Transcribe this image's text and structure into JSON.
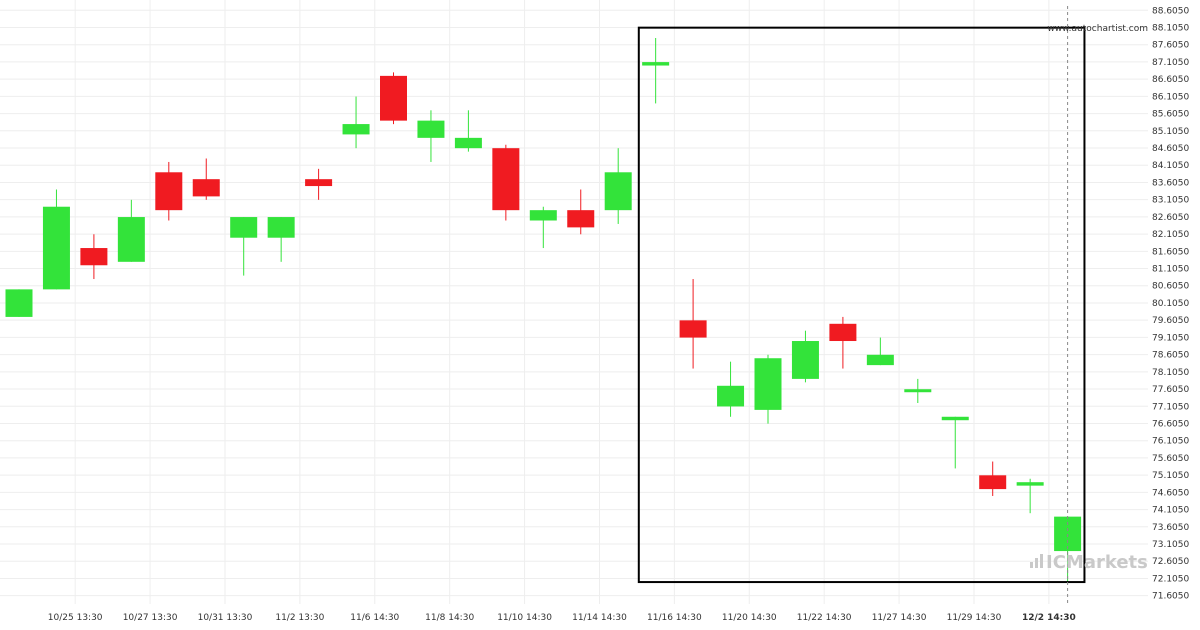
{
  "chart_data": {
    "type": "candlestick",
    "watermark": "www.autochartist.com",
    "brand": "ICMarkets",
    "y_ticks": [
      "88.6050",
      "88.1050",
      "87.6050",
      "87.1050",
      "86.6050",
      "86.1050",
      "85.6050",
      "85.1050",
      "84.6050",
      "84.1050",
      "83.6050",
      "83.1050",
      "82.6050",
      "82.1050",
      "81.6050",
      "81.1050",
      "80.6050",
      "80.1050",
      "79.6050",
      "79.1050",
      "78.6050",
      "78.1050",
      "77.6050",
      "77.1050",
      "76.6050",
      "76.1050",
      "75.6050",
      "75.1050",
      "74.6050",
      "74.1050",
      "73.6050",
      "73.1050",
      "72.6050",
      "72.1050",
      "71.6050"
    ],
    "ylim": [
      71.45,
      88.7
    ],
    "x_ticks": [
      "10/25 13:30",
      "10/27 13:30",
      "10/31 13:30",
      "11/2 13:30",
      "11/6 14:30",
      "11/8 14:30",
      "11/10 14:30",
      "11/14 14:30",
      "11/16 14:30",
      "11/20 14:30",
      "11/22 14:30",
      "11/27 14:30",
      "11/29 14:30",
      "12/2 14:30"
    ],
    "x_tick_index": [
      1.5,
      3.5,
      5.5,
      7.5,
      9.5,
      11.5,
      13.5,
      15.5,
      17.5,
      19.5,
      21.5,
      23.5,
      25.5,
      27.5
    ],
    "candles": [
      {
        "o": 79.7,
        "h": 80.5,
        "l": 79.7,
        "c": 80.5
      },
      {
        "o": 80.5,
        "h": 83.4,
        "l": 80.5,
        "c": 82.9
      },
      {
        "o": 81.7,
        "h": 82.1,
        "l": 80.8,
        "c": 81.2
      },
      {
        "o": 81.3,
        "h": 83.1,
        "l": 81.3,
        "c": 82.6
      },
      {
        "o": 83.9,
        "h": 84.2,
        "l": 82.5,
        "c": 82.8
      },
      {
        "o": 83.7,
        "h": 84.3,
        "l": 83.1,
        "c": 83.2
      },
      {
        "o": 82.0,
        "h": 82.6,
        "l": 80.9,
        "c": 82.6
      },
      {
        "o": 82.0,
        "h": 82.6,
        "l": 81.3,
        "c": 82.6
      },
      {
        "o": 83.7,
        "h": 84.0,
        "l": 83.1,
        "c": 83.5
      },
      {
        "o": 85.0,
        "h": 86.1,
        "l": 84.6,
        "c": 85.3
      },
      {
        "o": 86.7,
        "h": 86.8,
        "l": 85.3,
        "c": 85.4
      },
      {
        "o": 84.9,
        "h": 85.7,
        "l": 84.2,
        "c": 85.4
      },
      {
        "o": 84.6,
        "h": 85.7,
        "l": 84.5,
        "c": 84.9
      },
      {
        "o": 84.6,
        "h": 84.7,
        "l": 82.5,
        "c": 82.8
      },
      {
        "o": 82.5,
        "h": 82.9,
        "l": 81.7,
        "c": 82.8
      },
      {
        "o": 82.8,
        "h": 83.4,
        "l": 82.1,
        "c": 82.3
      },
      {
        "o": 82.8,
        "h": 84.6,
        "l": 82.4,
        "c": 83.9
      },
      {
        "o": 87.0,
        "h": 87.8,
        "l": 85.9,
        "c": 87.1
      },
      {
        "o": 79.6,
        "h": 80.8,
        "l": 78.2,
        "c": 79.1
      },
      {
        "o": 77.1,
        "h": 78.4,
        "l": 76.8,
        "c": 77.7
      },
      {
        "o": 77.0,
        "h": 78.6,
        "l": 76.6,
        "c": 78.5
      },
      {
        "o": 77.9,
        "h": 79.3,
        "l": 77.8,
        "c": 79.0
      },
      {
        "o": 79.5,
        "h": 79.7,
        "l": 78.2,
        "c": 79.0
      },
      {
        "o": 78.3,
        "h": 79.1,
        "l": 78.3,
        "c": 78.6
      },
      {
        "o": 77.6,
        "h": 77.9,
        "l": 77.2,
        "c": 77.6
      },
      {
        "o": 76.7,
        "h": 76.8,
        "l": 75.3,
        "c": 76.8
      },
      {
        "o": 75.1,
        "h": 75.5,
        "l": 74.5,
        "c": 74.7
      },
      {
        "o": 74.8,
        "h": 75.0,
        "l": 74.0,
        "c": 74.9
      },
      {
        "o": 72.9,
        "h": 73.9,
        "l": 72.0,
        "c": 73.9
      }
    ],
    "pattern_box": {
      "from_index": 16.55,
      "to_index": 28.45,
      "top": 88.1,
      "bottom": 72.0
    },
    "current_index": 28.0,
    "colors": {
      "up": "#33e33a",
      "down": "#f01b21",
      "grid": "#eeeeee",
      "box": "#000000",
      "dashed": "#888888"
    }
  }
}
